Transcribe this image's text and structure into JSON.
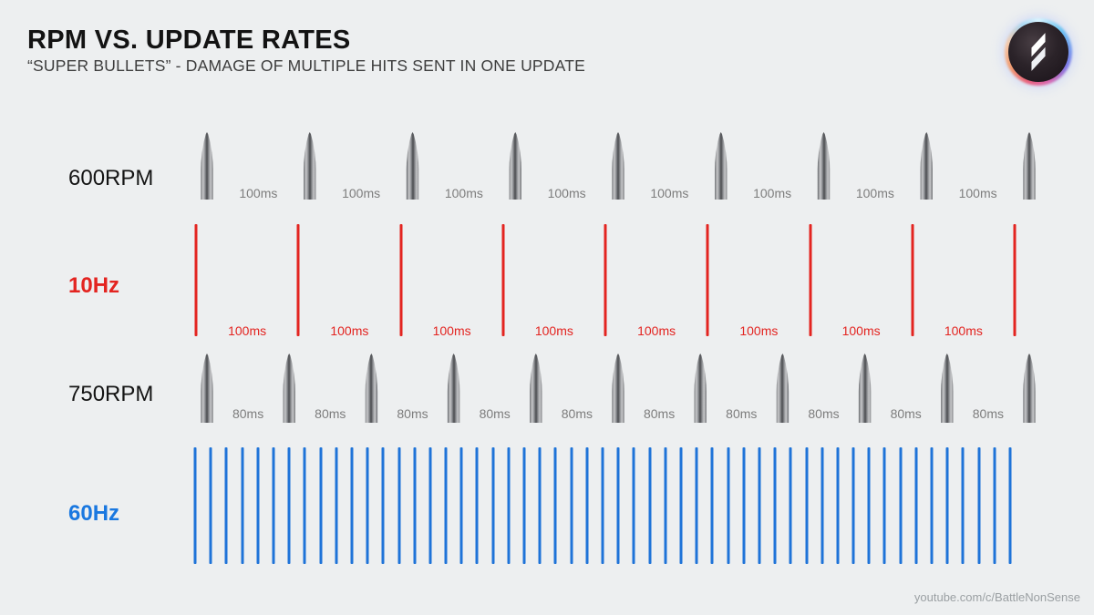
{
  "header": {
    "title": "RPM VS. UPDATE RATES",
    "subtitle": "“SUPER BULLETS” - DAMAGE OF MULTIPLE HITS SENT IN ONE UPDATE"
  },
  "logo": {
    "name": "BattleNonSense channel logo",
    "symbol": "s-bolt"
  },
  "rows": [
    {
      "key": "600rpm",
      "label": "600RPM",
      "element": "bullet",
      "count": 9,
      "gap_label": "100ms",
      "gap_count": 8,
      "label_style": "dark"
    },
    {
      "key": "10hz",
      "label": "10Hz",
      "element": "red-tick",
      "count": 9,
      "gap_label": "100ms",
      "gap_count": 8,
      "label_style": "red"
    },
    {
      "key": "750rpm",
      "label": "750RPM",
      "element": "bullet",
      "count": 11,
      "gap_label": "80ms",
      "gap_count": 10,
      "label_style": "dark"
    },
    {
      "key": "60hz",
      "label": "60Hz",
      "element": "blue-tick",
      "count": 53,
      "gap_label": null,
      "gap_count": 0,
      "label_style": "blue"
    }
  ],
  "footer": {
    "credit": "youtube.com/c/BattleNonSense"
  },
  "colors": {
    "background": "#edeff0",
    "title": "#131313",
    "subtitle": "#3d3d3d",
    "red": "#e32420",
    "blue": "#1e73d8",
    "gap_label_grey": "#7d7d7d",
    "footer_grey": "#9ba0a3"
  }
}
